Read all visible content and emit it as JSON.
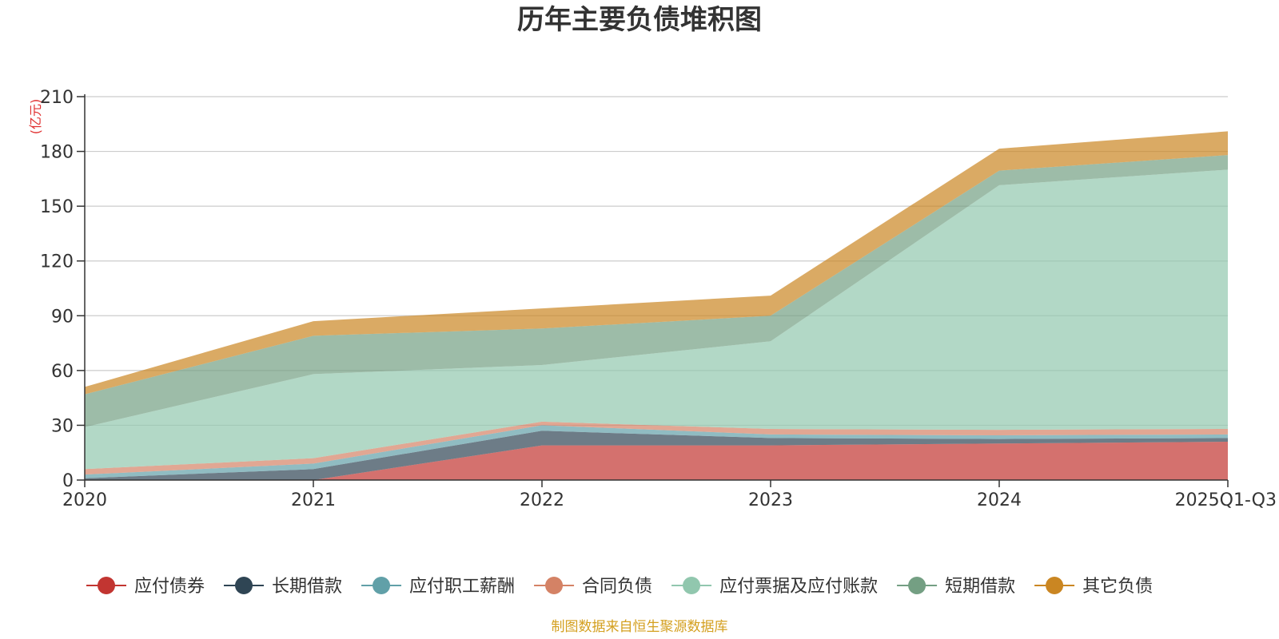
{
  "chart_data": {
    "type": "area",
    "stacked": true,
    "title": "历年主要负债堆积图",
    "y_unit": "(亿元)",
    "source": "制图数据来自恒生聚源数据库",
    "categories": [
      "2020",
      "2021",
      "2022",
      "2023",
      "2024",
      "2025Q1-Q3"
    ],
    "ylim": [
      0,
      210
    ],
    "yticks": [
      0,
      30,
      60,
      90,
      120,
      150,
      180,
      210
    ],
    "grid": true,
    "legend_position": "bottom",
    "series": [
      {
        "name": "应付债券",
        "color": "#c23531",
        "values": [
          0,
          0,
          19,
          19,
          20,
          21
        ]
      },
      {
        "name": "长期借款",
        "color": "#2f4554",
        "values": [
          1,
          6,
          8,
          4,
          2.5,
          2
        ]
      },
      {
        "name": "应付职工薪酬",
        "color": "#61a0a8",
        "values": [
          2,
          3,
          3,
          2,
          2,
          2
        ]
      },
      {
        "name": "合同负债",
        "color": "#d48265",
        "values": [
          3,
          3,
          2,
          3,
          3,
          3
        ]
      },
      {
        "name": "应付票据及应付账款",
        "color": "#91c7ae",
        "values": [
          23,
          46,
          31,
          48,
          134,
          142
        ]
      },
      {
        "name": "短期借款",
        "color": "#749f83",
        "values": [
          18,
          21,
          20,
          14,
          8,
          8
        ]
      },
      {
        "name": "其它负债",
        "color": "#ca8622",
        "values": [
          4,
          8,
          11,
          11,
          12,
          13
        ]
      }
    ]
  }
}
